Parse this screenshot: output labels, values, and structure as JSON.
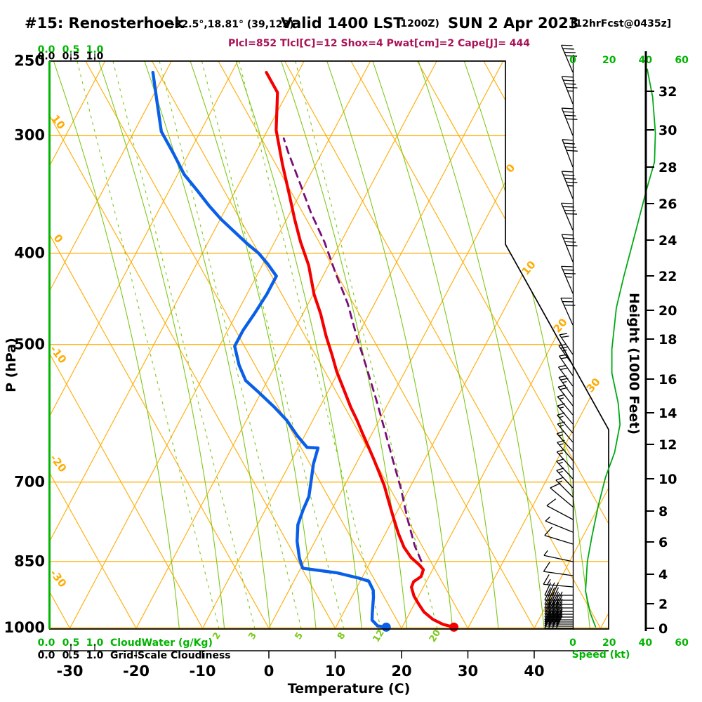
{
  "title": {
    "station": "#15: Renosterhoek",
    "coords": "-32.5°,18.81° (39,123)",
    "valid": "Valid 1400 LST",
    "zulu": "(1200Z)",
    "date": "SUN 2 Apr 2023",
    "fcst": "[12hrFcst@0435z]"
  },
  "params_line": "Plcl=852 Tlcl[C]=12 Shox=4 Pwat[cm]=2 Cape[J]= 444",
  "axes": {
    "pressure": {
      "label": "P (hPa)",
      "ticks": [
        250,
        300,
        400,
        500,
        700,
        850,
        1000
      ]
    },
    "temperature": {
      "label": "Temperature (C)",
      "ticks": [
        -30,
        -20,
        -10,
        0,
        10,
        20,
        30,
        40
      ]
    },
    "height": {
      "label": "Height (1000 Feet)",
      "ticks": [
        [
          0,
          895
        ],
        [
          2,
          860
        ],
        [
          4,
          818
        ],
        [
          6,
          772
        ],
        [
          8,
          728
        ],
        [
          10,
          682
        ],
        [
          12,
          633
        ],
        [
          14,
          588
        ],
        [
          16,
          540
        ],
        [
          18,
          483
        ],
        [
          20,
          442
        ],
        [
          22,
          393
        ],
        [
          24,
          342
        ],
        [
          26,
          290
        ],
        [
          28,
          238
        ],
        [
          30,
          185
        ],
        [
          32,
          130
        ]
      ]
    },
    "speed": {
      "label": "Speed (kt)",
      "ticks": [
        0,
        20,
        40,
        60
      ]
    },
    "cloudwater": {
      "label": "CloudWater (g/Kg)",
      "ticks": [
        "0.0",
        "0.5",
        "1.0"
      ]
    },
    "cloudiness": {
      "label": "Grid-Scale Cloudiness",
      "ticks": [
        "0.0",
        "0.5",
        "1.0"
      ]
    }
  },
  "chart_data": {
    "type": "skewt-log-p",
    "title": "#15: Renosterhoek Valid 1400 LST (1200Z) SUN 2 Apr 2023",
    "pressure_range_hpa": [
      250,
      1000
    ],
    "temperature_range_c": [
      -30,
      40
    ],
    "temperature_profile_T_p": [
      [
        -44.8,
        257
      ],
      [
        -41.5,
        270
      ],
      [
        -38.7,
        296
      ],
      [
        -35.0,
        322
      ],
      [
        -31.5,
        347
      ],
      [
        -28.8,
        368
      ],
      [
        -26.1,
        389
      ],
      [
        -23.0,
        412
      ],
      [
        -19.9,
        442
      ],
      [
        -17.3,
        464
      ],
      [
        -14.7,
        490
      ],
      [
        -12.4,
        512
      ],
      [
        -10.3,
        534
      ],
      [
        -7.8,
        558
      ],
      [
        -5.3,
        583
      ],
      [
        -3.3,
        602
      ],
      [
        -1.4,
        622
      ],
      [
        0.5,
        642
      ],
      [
        2.4,
        663
      ],
      [
        4.2,
        684
      ],
      [
        6.0,
        706
      ],
      [
        7.8,
        732
      ],
      [
        9.9,
        763
      ],
      [
        11.9,
        793
      ],
      [
        13.9,
        821
      ],
      [
        15.8,
        842
      ],
      [
        17.6,
        857
      ],
      [
        18.6,
        867
      ],
      [
        18.8,
        882
      ],
      [
        18.1,
        893
      ],
      [
        18.2,
        905
      ],
      [
        19.3,
        925
      ],
      [
        20.7,
        944
      ],
      [
        22.1,
        962
      ],
      [
        24.0,
        979
      ],
      [
        25.9,
        991
      ],
      [
        27.8,
        998
      ]
    ],
    "dewpoint_profile_T_p": [
      [
        -61.9,
        257
      ],
      [
        -58.8,
        277
      ],
      [
        -55.9,
        297
      ],
      [
        -52.4,
        313
      ],
      [
        -49.0,
        330
      ],
      [
        -45.8,
        343
      ],
      [
        -42.8,
        356
      ],
      [
        -39.9,
        368
      ],
      [
        -37.0,
        379
      ],
      [
        -34.2,
        390
      ],
      [
        -31.5,
        400
      ],
      [
        -29.2,
        411
      ],
      [
        -27.0,
        423
      ],
      [
        -27.0,
        442
      ],
      [
        -27.3,
        463
      ],
      [
        -27.7,
        483
      ],
      [
        -27.7,
        502
      ],
      [
        -25.5,
        526
      ],
      [
        -23.3,
        546
      ],
      [
        -20.4,
        562
      ],
      [
        -16.8,
        583
      ],
      [
        -13.9,
        602
      ],
      [
        -11.1,
        625
      ],
      [
        -8.7,
        643
      ],
      [
        -7.0,
        644
      ],
      [
        -6.4,
        670
      ],
      [
        -5.4,
        698
      ],
      [
        -4.5,
        725
      ],
      [
        -4.3,
        749
      ],
      [
        -3.9,
        777
      ],
      [
        -2.7,
        809
      ],
      [
        -1.0,
        843
      ],
      [
        0.3,
        864
      ],
      [
        2.5,
        868
      ],
      [
        5.9,
        874
      ],
      [
        9.5,
        885
      ],
      [
        11.3,
        892
      ],
      [
        12.7,
        912
      ],
      [
        13.3,
        928
      ],
      [
        14.4,
        965
      ],
      [
        14.9,
        981
      ],
      [
        16.2,
        995
      ],
      [
        17.6,
        998
      ]
    ],
    "parcel_T_p": [
      [
        17.6,
        849
      ],
      [
        15.4,
        818
      ],
      [
        12.1,
        765
      ],
      [
        8.8,
        712
      ],
      [
        5.3,
        664
      ],
      [
        1.6,
        616
      ],
      [
        -2.1,
        572
      ],
      [
        -6.2,
        528
      ],
      [
        -10.2,
        489
      ],
      [
        -14.1,
        452
      ],
      [
        -18.3,
        420
      ],
      [
        -22.5,
        389
      ],
      [
        -26.9,
        362
      ],
      [
        -31.2,
        335
      ],
      [
        -35.2,
        312
      ],
      [
        -36.9,
        302
      ]
    ],
    "surface": {
      "temperature_c": 27.8,
      "dewpoint_c": 17.6,
      "pressure_hpa": 998
    },
    "wind_speed_kt_p": [
      [
        41,
        255
      ],
      [
        44,
        273
      ],
      [
        45.5,
        298
      ],
      [
        45,
        320
      ],
      [
        40.5,
        343
      ],
      [
        34.5,
        380
      ],
      [
        28,
        424
      ],
      [
        24,
        457
      ],
      [
        21.5,
        506
      ],
      [
        21.5,
        536
      ],
      [
        25,
        577
      ],
      [
        26,
        608
      ],
      [
        23,
        651
      ],
      [
        18,
        692
      ],
      [
        14,
        742
      ],
      [
        10.5,
        800
      ],
      [
        8,
        850
      ],
      [
        7,
        914
      ],
      [
        9.5,
        963
      ],
      [
        12.5,
        997
      ]
    ],
    "wind_barbs_y_dir_full_half": [
      [
        103,
        113,
        4,
        0
      ],
      [
        148,
        112,
        4,
        1
      ],
      [
        193,
        112,
        4,
        0
      ],
      [
        238,
        111,
        4,
        0
      ],
      [
        283,
        112,
        4,
        1
      ],
      [
        328,
        113,
        4,
        0
      ],
      [
        373,
        112,
        4,
        0
      ],
      [
        418,
        113,
        3,
        1
      ],
      [
        463,
        114,
        3,
        0
      ],
      [
        505,
        124,
        2,
        0
      ],
      [
        520,
        126,
        2,
        1
      ],
      [
        535,
        125,
        2,
        0
      ],
      [
        550,
        127,
        2,
        0
      ],
      [
        565,
        126,
        2,
        1
      ],
      [
        578,
        128,
        2,
        0
      ],
      [
        591,
        130,
        1,
        1
      ],
      [
        604,
        130,
        1,
        1
      ],
      [
        617,
        131,
        1,
        1
      ],
      [
        630,
        130,
        1,
        1
      ],
      [
        643,
        132,
        1,
        1
      ],
      [
        656,
        131,
        1,
        1
      ],
      [
        669,
        132,
        1,
        1
      ],
      [
        682,
        133,
        1,
        1
      ],
      [
        695,
        133,
        1,
        1
      ],
      [
        708,
        135,
        1,
        1
      ],
      [
        722,
        140,
        1,
        0
      ],
      [
        740,
        152,
        1,
        0
      ],
      [
        758,
        158,
        0,
        1
      ],
      [
        775,
        163,
        1,
        0
      ],
      [
        800,
        168,
        0,
        1
      ],
      [
        820,
        172,
        1,
        0
      ],
      [
        836,
        175,
        1,
        1
      ],
      [
        848,
        180,
        3,
        0
      ],
      [
        855,
        180,
        3,
        1
      ],
      [
        861,
        180,
        4,
        0
      ],
      [
        866,
        180,
        4,
        0
      ],
      [
        871,
        180,
        4,
        0
      ],
      [
        875,
        180,
        4,
        0
      ],
      [
        879,
        180,
        4,
        0
      ],
      [
        883,
        180,
        4,
        0
      ],
      [
        886,
        180,
        4,
        0
      ],
      [
        889,
        180,
        4,
        0
      ],
      [
        892,
        180,
        4,
        0
      ],
      [
        895,
        180,
        4,
        0
      ]
    ],
    "grid": {
      "isobars_hpa": [
        300,
        400,
        500,
        700,
        850,
        1000
      ],
      "isotherms_c": {
        "min": -90,
        "max": 50,
        "step": 10
      },
      "dry_adiabats_c": {
        "min": -40,
        "max": 90,
        "step": 10
      },
      "moist_adiabats_surface_c": [
        -13.5,
        -6.7,
        0.2,
        7.1,
        14,
        20.8,
        27.7,
        34.6,
        41.5,
        48.4
      ],
      "mixing_ratio": {
        "values_gkg": [
          2,
          3,
          5,
          8,
          12,
          20
        ],
        "surface_c": [
          -7.5,
          -2.1,
          4.9,
          11.3,
          16.9,
          25.4
        ]
      }
    },
    "grid_labels": {
      "dry_adiabats": [
        [
          10,
          177
        ],
        [
          0,
          343
        ],
        [
          -10,
          508
        ],
        [
          -20,
          663
        ],
        [
          -30,
          827
        ]
      ],
      "isotherms": [
        [
          0,
          731,
          243
        ],
        [
          10,
          757,
          385
        ],
        [
          20,
          802,
          467
        ],
        [
          30,
          849,
          552
        ]
      ]
    },
    "legend_position": "none",
    "colors": {
      "grid_orange": "#FFAB00",
      "grid_green": "#7CC818",
      "temperature": "#F40000",
      "dewpoint": "#0A5FE8",
      "parcel": "#7A0D7A",
      "wind_green": "#00AA14",
      "axis_green": "#00B400",
      "params_text": "#A81456"
    }
  }
}
